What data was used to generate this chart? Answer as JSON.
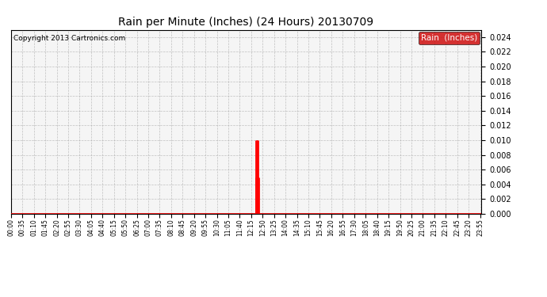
{
  "title": "Rain per Minute (Inches) (24 Hours) 20130709",
  "copyright": "Copyright 2013 Cartronics.com",
  "legend_label": "Rain  (Inches)",
  "background_color": "#ffffff",
  "plot_bg_color": "#f5f5f5",
  "grid_color": "#aaaaaa",
  "line_color": "#ff0000",
  "legend_bg": "#cc0000",
  "legend_text_color": "#ffffff",
  "ylim": [
    0.0,
    0.025
  ],
  "yticks": [
    0.0,
    0.002,
    0.004,
    0.006,
    0.008,
    0.01,
    0.012,
    0.014,
    0.016,
    0.018,
    0.02,
    0.022,
    0.024
  ],
  "total_minutes": 1440,
  "rain_spikes": [
    {
      "minute": 750,
      "value": 0.005
    },
    {
      "minute": 751,
      "value": 0.01
    },
    {
      "minute": 752,
      "value": 0.01
    },
    {
      "minute": 753,
      "value": 0.005
    },
    {
      "minute": 754,
      "value": 0.01
    },
    {
      "minute": 755,
      "value": 0.005
    },
    {
      "minute": 756,
      "value": 0.005
    }
  ],
  "xtick_interval": 35,
  "title_fontsize": 10,
  "copyright_fontsize": 6.5,
  "legend_fontsize": 7.5,
  "ytick_fontsize": 7,
  "xtick_fontsize": 5.5
}
